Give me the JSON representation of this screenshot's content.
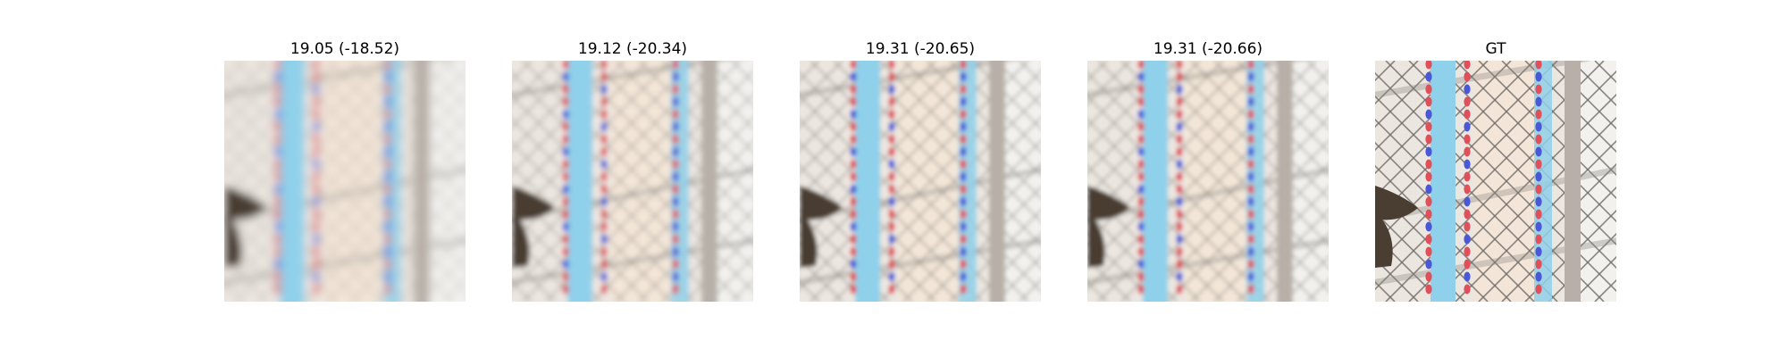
{
  "figure": {
    "panels": [
      {
        "title": "19.05 (-18.52)",
        "kind": "reconstruction",
        "sharpness": 0.15
      },
      {
        "title": "19.12 (-20.34)",
        "kind": "reconstruction",
        "sharpness": 0.45
      },
      {
        "title": "19.31 (-20.65)",
        "kind": "reconstruction",
        "sharpness": 0.55
      },
      {
        "title": "19.31 (-20.66)",
        "kind": "reconstruction",
        "sharpness": 0.55
      },
      {
        "title": "GT",
        "kind": "ground-truth",
        "sharpness": 1.0
      }
    ],
    "scene": {
      "description_colors": {
        "background": "#ece6e0",
        "cyan_tube": "#8fd0ea",
        "red_bead": "#e0505a",
        "blue_bead": "#4a58d8",
        "fence_wire": "#6e6a66",
        "pole": "#b8b0a8",
        "dark_object": "#4a3e32",
        "warm_patch": "#f3e6d8"
      }
    }
  }
}
